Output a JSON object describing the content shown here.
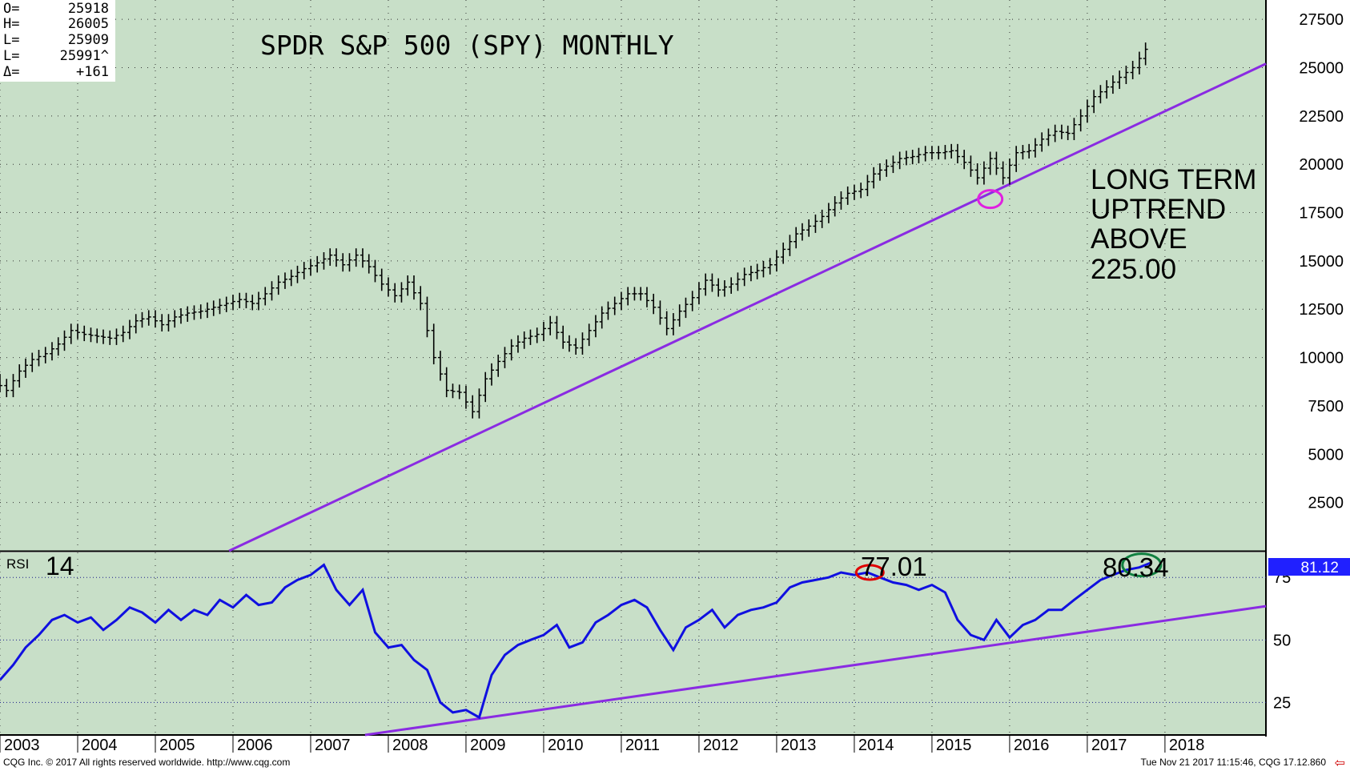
{
  "ohlc": [
    {
      "k": "O=",
      "v": "25918"
    },
    {
      "k": "H=",
      "v": "26005"
    },
    {
      "k": "L=",
      "v": "25909"
    },
    {
      "k": "L=",
      "v": "25991^"
    },
    {
      "k": "Δ=",
      "v": "+161"
    }
  ],
  "footer": {
    "left": "CQG Inc. © 2017 All rights reserved worldwide. http://www.cqg.com",
    "right": "Tue Nov 21 2017 11:15:46, CQG 17.12.860",
    "arrow_icon": "left-arrow-icon"
  },
  "colors": {
    "background": "#c8dfc8",
    "price": "#000000",
    "rsi": "#1010e0",
    "trendline": "#8a2be2",
    "highlight_pink": "#e020e0",
    "highlight_red": "#e00000",
    "highlight_green": "#108040",
    "current_value_box": "#2020ff"
  },
  "chart_data": [
    {
      "type": "line",
      "title": "SPDR S&P 500 (SPY) MONTHLY",
      "annotation": [
        "LONG TERM",
        "UPTREND",
        "ABOVE",
        "225.00"
      ],
      "x_ticks": [
        "2003",
        "2004",
        "2005",
        "2006",
        "2007",
        "2008",
        "2009",
        "2010",
        "2011",
        "2012",
        "2013",
        "2014",
        "2015",
        "2016",
        "2017",
        "2018"
      ],
      "y_ticks": [
        2500,
        5000,
        7500,
        10000,
        12500,
        15000,
        17500,
        20000,
        22500,
        25000,
        27500
      ],
      "ylim": [
        0,
        28500
      ],
      "xlim": [
        2003.0,
        2019.3
      ],
      "grid": true,
      "price_series": {
        "name": "SPY",
        "x": [
          2003.0,
          2003.17,
          2003.33,
          2003.5,
          2003.67,
          2003.83,
          2004.0,
          2004.17,
          2004.33,
          2004.5,
          2004.67,
          2004.83,
          2005.0,
          2005.17,
          2005.33,
          2005.5,
          2005.67,
          2005.83,
          2006.0,
          2006.17,
          2006.33,
          2006.5,
          2006.67,
          2006.83,
          2007.0,
          2007.17,
          2007.33,
          2007.5,
          2007.67,
          2007.83,
          2008.0,
          2008.17,
          2008.33,
          2008.5,
          2008.67,
          2008.83,
          2009.0,
          2009.17,
          2009.33,
          2009.5,
          2009.67,
          2009.83,
          2010.0,
          2010.17,
          2010.33,
          2010.5,
          2010.67,
          2010.83,
          2011.0,
          2011.17,
          2011.33,
          2011.5,
          2011.67,
          2011.83,
          2012.0,
          2012.17,
          2012.33,
          2012.5,
          2012.67,
          2012.83,
          2013.0,
          2013.17,
          2013.33,
          2013.5,
          2013.67,
          2013.83,
          2014.0,
          2014.17,
          2014.33,
          2014.5,
          2014.67,
          2014.83,
          2015.0,
          2015.17,
          2015.33,
          2015.5,
          2015.67,
          2015.83,
          2016.0,
          2016.17,
          2016.33,
          2016.5,
          2016.67,
          2016.83,
          2017.0,
          2017.17,
          2017.33,
          2017.5,
          2017.67,
          2017.83
        ],
        "y": [
          8800,
          8300,
          9300,
          9900,
          10200,
          10700,
          11400,
          11200,
          11100,
          11000,
          11300,
          11900,
          12100,
          11700,
          12100,
          12300,
          12400,
          12600,
          12800,
          13000,
          12800,
          13300,
          13900,
          14200,
          14600,
          14900,
          15300,
          14800,
          15300,
          14700,
          13800,
          13200,
          13900,
          12800,
          10000,
          8300,
          8200,
          7200,
          8900,
          9800,
          10600,
          11000,
          11200,
          11800,
          10800,
          10500,
          11400,
          12300,
          12800,
          13300,
          13300,
          12600,
          11500,
          12400,
          13100,
          14000,
          13500,
          13800,
          14300,
          14500,
          14800,
          15600,
          16400,
          16800,
          17300,
          18000,
          18500,
          18700,
          19500,
          19900,
          20300,
          20400,
          20600,
          20600,
          20700,
          20100,
          19300,
          20300,
          19300,
          20600,
          20700,
          21300,
          21700,
          21600,
          22500,
          23500,
          24000,
          24500,
          25000,
          25950
        ]
      },
      "long_term_trendline": {
        "x": [
          2005.95,
          2019.3
        ],
        "y": [
          0,
          25200
        ]
      },
      "highlight": {
        "shape": "ellipse",
        "color": "pink",
        "x": 2015.75,
        "y": 18200
      }
    },
    {
      "type": "line",
      "label": "RSI",
      "period_label": "14",
      "x_ticks": [
        "2003",
        "2004",
        "2005",
        "2006",
        "2007",
        "2008",
        "2009",
        "2010",
        "2011",
        "2012",
        "2013",
        "2014",
        "2015",
        "2016",
        "2017",
        "2018"
      ],
      "y_ticks": [
        25,
        50,
        75
      ],
      "ylim": [
        12,
        85
      ],
      "xlim": [
        2003.0,
        2019.3
      ],
      "current_value": "81.12",
      "annotations": [
        {
          "text": "77.01",
          "x": 2014.15,
          "y": 77.01
        },
        {
          "text": "80.34",
          "x": 2017.6,
          "y": 80.34
        }
      ],
      "rsi_series": {
        "name": "RSI 14",
        "x": [
          2003.0,
          2003.17,
          2003.33,
          2003.5,
          2003.67,
          2003.83,
          2004.0,
          2004.17,
          2004.33,
          2004.5,
          2004.67,
          2004.83,
          2005.0,
          2005.17,
          2005.33,
          2005.5,
          2005.67,
          2005.83,
          2006.0,
          2006.17,
          2006.33,
          2006.5,
          2006.67,
          2006.83,
          2007.0,
          2007.17,
          2007.33,
          2007.5,
          2007.67,
          2007.83,
          2008.0,
          2008.17,
          2008.33,
          2008.5,
          2008.67,
          2008.83,
          2009.0,
          2009.17,
          2009.33,
          2009.5,
          2009.67,
          2009.83,
          2010.0,
          2010.17,
          2010.33,
          2010.5,
          2010.67,
          2010.83,
          2011.0,
          2011.17,
          2011.33,
          2011.5,
          2011.67,
          2011.83,
          2012.0,
          2012.17,
          2012.33,
          2012.5,
          2012.67,
          2012.83,
          2013.0,
          2013.17,
          2013.33,
          2013.5,
          2013.67,
          2013.83,
          2014.0,
          2014.17,
          2014.33,
          2014.5,
          2014.67,
          2014.83,
          2015.0,
          2015.17,
          2015.33,
          2015.5,
          2015.67,
          2015.83,
          2016.0,
          2016.17,
          2016.33,
          2016.5,
          2016.67,
          2016.83,
          2017.0,
          2017.17,
          2017.33,
          2017.5,
          2017.67,
          2017.83
        ],
        "y": [
          34,
          40,
          47,
          52,
          58,
          60,
          57,
          59,
          54,
          58,
          63,
          61,
          57,
          62,
          58,
          62,
          60,
          66,
          63,
          68,
          64,
          65,
          71,
          74,
          76,
          80,
          70,
          64,
          70,
          53,
          47,
          48,
          42,
          38,
          25,
          21,
          22,
          19,
          36,
          44,
          48,
          50,
          52,
          56,
          47,
          49,
          57,
          60,
          64,
          66,
          63,
          54,
          46,
          55,
          58,
          62,
          55,
          60,
          62,
          63,
          65,
          71,
          73,
          74,
          75,
          77,
          76,
          77,
          75,
          73,
          72,
          70,
          72,
          69,
          58,
          52,
          50,
          58,
          51,
          56,
          58,
          62,
          62,
          66,
          70,
          74,
          76,
          78,
          79,
          81
        ]
      },
      "rsi_trendline": {
        "x": [
          2007.7,
          2019.3
        ],
        "y": [
          12,
          63.5
        ]
      },
      "highlights": [
        {
          "shape": "ellipse",
          "color": "red",
          "x": 2014.2,
          "y": 77
        },
        {
          "shape": "ellipse",
          "color": "green",
          "x": 2017.7,
          "y": 80
        }
      ]
    }
  ]
}
